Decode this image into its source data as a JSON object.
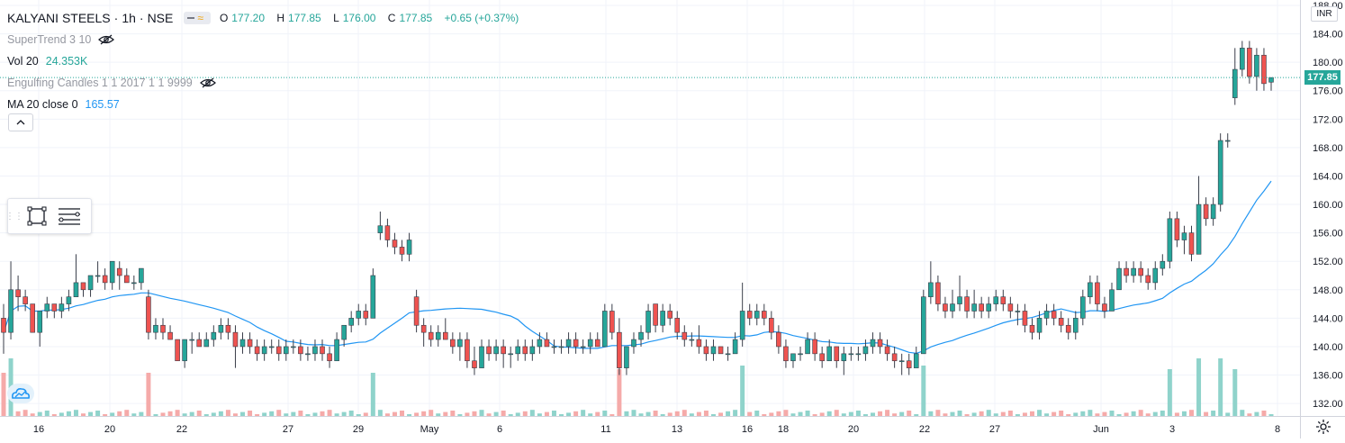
{
  "header": {
    "symbol": "KALYANI STEELS",
    "interval": "1h",
    "exchange": "NSE",
    "sep": "·",
    "open_label": "O",
    "open": "177.20",
    "high_label": "H",
    "high": "177.85",
    "low_label": "L",
    "low": "176.00",
    "close_label": "C",
    "close": "177.85",
    "change": "+0.65 (+0.37%)"
  },
  "indicators": [
    {
      "name": "SuperTrend 3 10",
      "value": "",
      "hidden": true
    },
    {
      "name": "Vol 20",
      "value": "24.353K",
      "hidden": false
    },
    {
      "name": "Engulfing Candles 1 1 2017 1 1 9999",
      "value": "",
      "hidden": true
    },
    {
      "name": "MA 20 close 0",
      "value": "165.57",
      "hidden": false
    }
  ],
  "price_axis": {
    "currency": "INR",
    "last_price": "177.85"
  },
  "colors": {
    "up": "#26a69a",
    "down": "#ef5350",
    "ma": "#2196f3",
    "vol_up": "#8fd3cb",
    "vol_down": "#f5aaa9",
    "grid": "#f0f3fa"
  },
  "icons": [
    "eye-off-icon",
    "chevron-up-icon",
    "rectangle-tool-icon",
    "lines-tool-icon",
    "tradingview-logo-icon",
    "settings-gear-icon"
  ],
  "chart_data": {
    "type": "candlestick",
    "title": "KALYANI STEELS · 1h · NSE",
    "y_ticks": [
      132,
      136,
      140,
      144,
      148,
      152,
      156,
      160,
      164,
      168,
      172,
      176,
      180,
      184,
      188
    ],
    "ylim": [
      131,
      188
    ],
    "x_tick_labels": [
      "16",
      "20",
      "22",
      "27",
      "29",
      "May",
      "6",
      "11",
      "13",
      "16",
      "18",
      "20",
      "22",
      "27",
      "Jun",
      "3",
      "8"
    ],
    "bars": [
      [
        144,
        146,
        139,
        142
      ],
      [
        142,
        152,
        141,
        148
      ],
      [
        148,
        150,
        145,
        147
      ],
      [
        147,
        148,
        145,
        146
      ],
      [
        146,
        146,
        142,
        142
      ],
      [
        142,
        145,
        140,
        145
      ],
      [
        145,
        147,
        144,
        146
      ],
      [
        146,
        146,
        144,
        145
      ],
      [
        145,
        147,
        144,
        146
      ],
      [
        146,
        148,
        145,
        147
      ],
      [
        147,
        153,
        147,
        149
      ],
      [
        149,
        149,
        147,
        148
      ],
      [
        148,
        150,
        147,
        150
      ],
      [
        150,
        152,
        149,
        150
      ],
      [
        150,
        151,
        148,
        149
      ],
      [
        149,
        152,
        148,
        152
      ],
      [
        151,
        152,
        148,
        150
      ],
      [
        150,
        151,
        149,
        149
      ],
      [
        149,
        150,
        148,
        149
      ],
      [
        149,
        151,
        148,
        151
      ],
      [
        147,
        148,
        141,
        142
      ],
      [
        142,
        144,
        141,
        143
      ],
      [
        143,
        144,
        141,
        142
      ],
      [
        142,
        143,
        141,
        141
      ],
      [
        141,
        141,
        138,
        138
      ],
      [
        138,
        141,
        137,
        141
      ],
      [
        141,
        142,
        139,
        141
      ],
      [
        141,
        142,
        140,
        140
      ],
      [
        140,
        142,
        140,
        141
      ],
      [
        141,
        143,
        140,
        142
      ],
      [
        142,
        144,
        141,
        143
      ],
      [
        143,
        144,
        141,
        142
      ],
      [
        142,
        143,
        137,
        140
      ],
      [
        140,
        142,
        139,
        141
      ],
      [
        141,
        142,
        139,
        140
      ],
      [
        140,
        141,
        138,
        139
      ],
      [
        139,
        141,
        138,
        140
      ],
      [
        140,
        141,
        139,
        140
      ],
      [
        140,
        141,
        138,
        139
      ],
      [
        139,
        141,
        138,
        140
      ],
      [
        140,
        141,
        139,
        140
      ],
      [
        140,
        141,
        138,
        139
      ],
      [
        139,
        140,
        138,
        139
      ],
      [
        139,
        141,
        138,
        140
      ],
      [
        140,
        141,
        138,
        139
      ],
      [
        139,
        140,
        137,
        138
      ],
      [
        138,
        142,
        138,
        141
      ],
      [
        141,
        143,
        140,
        143
      ],
      [
        143,
        145,
        142,
        144
      ],
      [
        144,
        146,
        143,
        145
      ],
      [
        145,
        146,
        143,
        144
      ],
      [
        144,
        151,
        144,
        150
      ],
      [
        156,
        159,
        155,
        157
      ],
      [
        157,
        158,
        154,
        155
      ],
      [
        155,
        156,
        153,
        154
      ],
      [
        154,
        155,
        152,
        153
      ],
      [
        153,
        156,
        152,
        155
      ],
      [
        147,
        148,
        142,
        143
      ],
      [
        143,
        144,
        140,
        142
      ],
      [
        142,
        143,
        140,
        141
      ],
      [
        141,
        143,
        140,
        142
      ],
      [
        142,
        144,
        141,
        141
      ],
      [
        141,
        142,
        139,
        140
      ],
      [
        140,
        142,
        138,
        141
      ],
      [
        141,
        142,
        137,
        138
      ],
      [
        138,
        140,
        136,
        137
      ],
      [
        137,
        141,
        137,
        140
      ],
      [
        140,
        141,
        138,
        139
      ],
      [
        139,
        141,
        138,
        140
      ],
      [
        140,
        141,
        137,
        139
      ],
      [
        139,
        140,
        137,
        139
      ],
      [
        139,
        141,
        138,
        140
      ],
      [
        140,
        141,
        138,
        139
      ],
      [
        139,
        141,
        138,
        140
      ],
      [
        140,
        142,
        139,
        141
      ],
      [
        141,
        142,
        140,
        140
      ],
      [
        140,
        141,
        139,
        140
      ],
      [
        140,
        141,
        139,
        140
      ],
      [
        140,
        142,
        139,
        141
      ],
      [
        141,
        142,
        139,
        140
      ],
      [
        140,
        141,
        139,
        140
      ],
      [
        140,
        142,
        139,
        141
      ],
      [
        141,
        142,
        140,
        140
      ],
      [
        140,
        146,
        140,
        145
      ],
      [
        145,
        146,
        141,
        142
      ],
      [
        142,
        144,
        136,
        137
      ],
      [
        137,
        140,
        136,
        140
      ],
      [
        140,
        142,
        139,
        141
      ],
      [
        141,
        143,
        140,
        142
      ],
      [
        142,
        146,
        141,
        145
      ],
      [
        146,
        146,
        142,
        143
      ],
      [
        143,
        146,
        142,
        145
      ],
      [
        145,
        146,
        143,
        144
      ],
      [
        144,
        145,
        141,
        142
      ],
      [
        142,
        143,
        140,
        141
      ],
      [
        141,
        142,
        140,
        141
      ],
      [
        141,
        143,
        139,
        140
      ],
      [
        140,
        141,
        138,
        139
      ],
      [
        139,
        141,
        138,
        140
      ],
      [
        140,
        140,
        139,
        139
      ],
      [
        139,
        140,
        138,
        139
      ],
      [
        139,
        142,
        139,
        141
      ],
      [
        141,
        149,
        140,
        145
      ],
      [
        145,
        146,
        143,
        144
      ],
      [
        144,
        146,
        143,
        145
      ],
      [
        145,
        146,
        143,
        144
      ],
      [
        144,
        145,
        141,
        142
      ],
      [
        142,
        143,
        139,
        140
      ],
      [
        140,
        141,
        137,
        138
      ],
      [
        138,
        139,
        137,
        139
      ],
      [
        139,
        140,
        138,
        139
      ],
      [
        139,
        142,
        139,
        141
      ],
      [
        141,
        142,
        138,
        139
      ],
      [
        139,
        140,
        137,
        138
      ],
      [
        138,
        141,
        138,
        140
      ],
      [
        140,
        140,
        137,
        138
      ],
      [
        138,
        140,
        136,
        139
      ],
      [
        139,
        140,
        138,
        139
      ],
      [
        139,
        140,
        138,
        139
      ],
      [
        139,
        141,
        138,
        140
      ],
      [
        140,
        142,
        139,
        141
      ],
      [
        141,
        142,
        139,
        140
      ],
      [
        140,
        141,
        138,
        139
      ],
      [
        139,
        140,
        137,
        138
      ],
      [
        138,
        139,
        136,
        138
      ],
      [
        138,
        139,
        136,
        137
      ],
      [
        137,
        140,
        137,
        139
      ],
      [
        139,
        148,
        139,
        147
      ],
      [
        147,
        152,
        146,
        149
      ],
      [
        149,
        150,
        145,
        146
      ],
      [
        146,
        147,
        144,
        145
      ],
      [
        145,
        148,
        144,
        146
      ],
      [
        146,
        150,
        145,
        147
      ],
      [
        147,
        148,
        144,
        145
      ],
      [
        145,
        148,
        144,
        146
      ],
      [
        146,
        147,
        144,
        145
      ],
      [
        145,
        147,
        144,
        146
      ],
      [
        146,
        148,
        145,
        147
      ],
      [
        147,
        148,
        145,
        146
      ],
      [
        146,
        147,
        144,
        145
      ],
      [
        145,
        146,
        143,
        145
      ],
      [
        145,
        146,
        142,
        143
      ],
      [
        143,
        144,
        141,
        142
      ],
      [
        142,
        145,
        141,
        144
      ],
      [
        144,
        146,
        143,
        145
      ],
      [
        145,
        146,
        143,
        144
      ],
      [
        144,
        145,
        142,
        143
      ],
      [
        143,
        144,
        141,
        142
      ],
      [
        142,
        145,
        141,
        144
      ],
      [
        144,
        148,
        143,
        147
      ],
      [
        147,
        150,
        146,
        149
      ],
      [
        149,
        150,
        145,
        146
      ],
      [
        146,
        147,
        144,
        145
      ],
      [
        145,
        149,
        145,
        148
      ],
      [
        148,
        152,
        148,
        151
      ],
      [
        151,
        152,
        149,
        150
      ],
      [
        150,
        152,
        149,
        151
      ],
      [
        151,
        152,
        149,
        150
      ],
      [
        150,
        151,
        148,
        149
      ],
      [
        149,
        152,
        148,
        151
      ],
      [
        151,
        153,
        150,
        152
      ],
      [
        152,
        159,
        151,
        158
      ],
      [
        158,
        159,
        154,
        155
      ],
      [
        155,
        157,
        153,
        156
      ],
      [
        156,
        157,
        152,
        153
      ],
      [
        153,
        164,
        153,
        160
      ],
      [
        160,
        161,
        157,
        158
      ],
      [
        158,
        161,
        157,
        160
      ],
      [
        160,
        170,
        159,
        169
      ],
      [
        169,
        170,
        168,
        169
      ],
      [
        175,
        182,
        174,
        179
      ],
      [
        179,
        183,
        178,
        182
      ],
      [
        182,
        183,
        177,
        178
      ],
      [
        178,
        182,
        176,
        181
      ],
      [
        181,
        182,
        176,
        177
      ],
      [
        177.2,
        177.85,
        176,
        177.85
      ]
    ],
    "volume_note": "volume bars in lower band, tall bars near Apr 30, May 25 and Jun 3-6"
  }
}
